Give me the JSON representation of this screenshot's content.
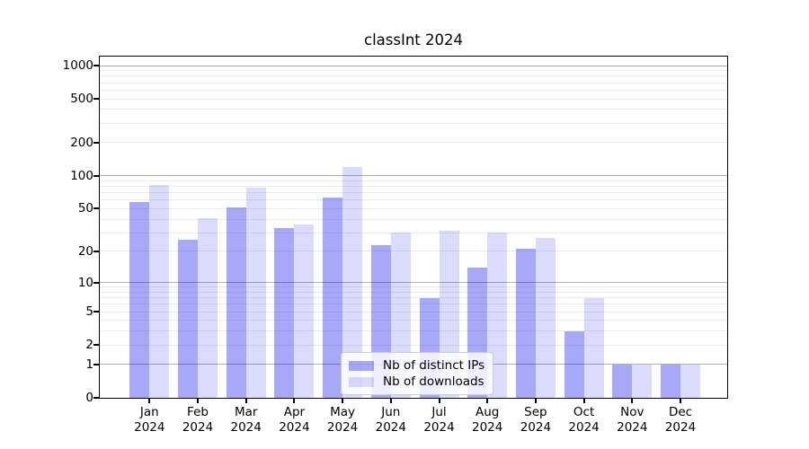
{
  "chart_data": {
    "type": "bar",
    "title": "classInt 2024",
    "categories": [
      "Jan 2024",
      "Feb 2024",
      "Mar 2024",
      "Apr 2024",
      "May 2024",
      "Jun 2024",
      "Jul 2024",
      "Aug 2024",
      "Sep 2024",
      "Oct 2024",
      "Nov 2024",
      "Dec 2024"
    ],
    "series": [
      {
        "name": "Nb of distinct IPs",
        "color": "rgba(0,0,235,0.34)",
        "values": [
          58,
          26,
          51,
          33,
          63,
          23,
          7,
          14,
          21,
          3,
          1,
          1
        ]
      },
      {
        "name": "Nb of downloads",
        "color": "rgba(0,0,235,0.14)",
        "values": [
          82,
          41,
          78,
          36,
          120,
          30,
          31,
          30,
          27,
          7,
          1,
          1
        ]
      }
    ],
    "xlabel": "",
    "ylabel": "",
    "y_ticks": [
      0,
      1,
      2,
      5,
      10,
      20,
      50,
      100,
      200,
      500,
      1000
    ],
    "y_scale": "log1p",
    "ylim": [
      0,
      1000
    ],
    "grid": true,
    "legend_position": "lower center",
    "colors": {
      "major_grid": "#b0b0b0",
      "minor_grid": "#ebebeb",
      "axis": "#000000",
      "background": "#ffffff"
    }
  },
  "legend": {
    "items": [
      {
        "label": "Nb of distinct IPs"
      },
      {
        "label": "Nb of downloads"
      }
    ]
  }
}
